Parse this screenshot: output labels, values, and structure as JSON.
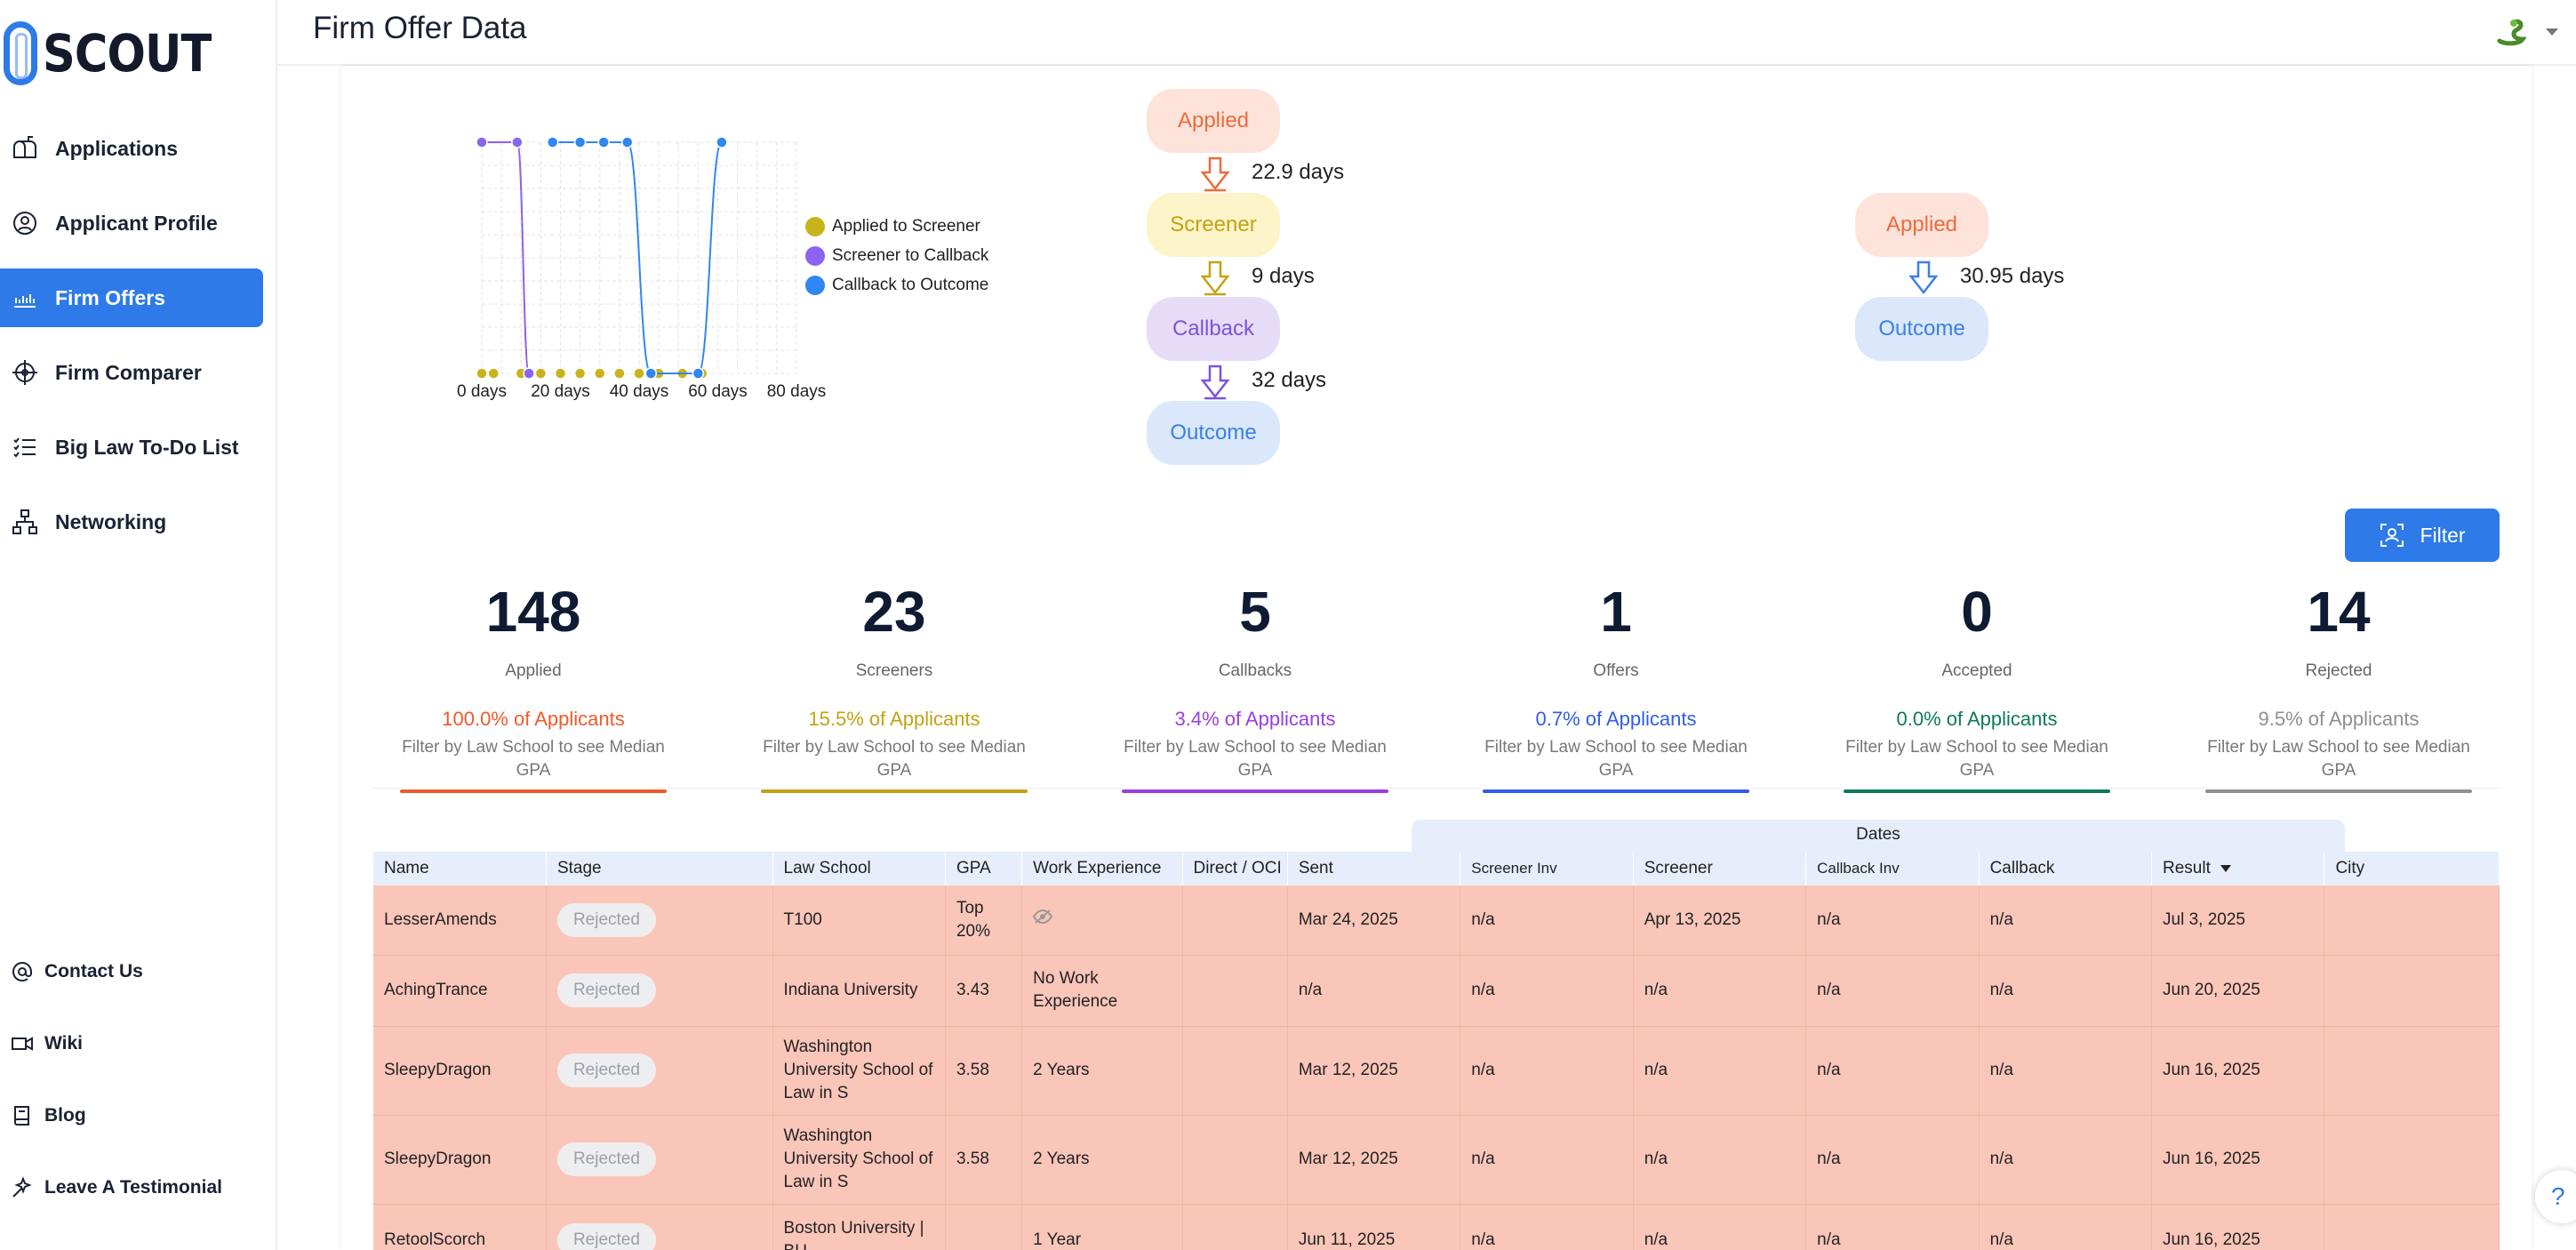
{
  "brand": {
    "name": "SCOUT"
  },
  "header": {
    "title": "Firm Offer Data"
  },
  "sidebar": {
    "items": [
      {
        "label": "Applications",
        "icon": "mailbox-icon"
      },
      {
        "label": "Applicant Profile",
        "icon": "user-search-icon"
      },
      {
        "label": "Firm Offers",
        "icon": "bar-chart-icon",
        "active": true
      },
      {
        "label": "Firm Comparer",
        "icon": "compass-icon"
      },
      {
        "label": "Big Law To-Do List",
        "icon": "checklist-icon"
      },
      {
        "label": "Networking",
        "icon": "network-icon"
      }
    ],
    "footer": [
      {
        "label": "Contact Us",
        "icon": "at-icon"
      },
      {
        "label": "Wiki",
        "icon": "video-icon"
      },
      {
        "label": "Blog",
        "icon": "book-icon"
      },
      {
        "label": "Leave A Testimonial",
        "icon": "sparkle-icon"
      }
    ]
  },
  "chart_data": {
    "type": "scatter",
    "x_ticks": [
      "0 days",
      "20 days",
      "40 days",
      "60 days",
      "80 days"
    ],
    "xlim": [
      0,
      80
    ],
    "grid": true,
    "legend_position": "right",
    "series": [
      {
        "name": "Applied to Screener",
        "color": "#c9b31a",
        "points": [
          [
            0,
            0
          ],
          [
            3,
            0
          ],
          [
            10,
            0
          ],
          [
            15,
            0
          ],
          [
            20,
            0
          ],
          [
            25,
            0
          ],
          [
            30,
            0
          ],
          [
            35,
            0
          ],
          [
            40,
            0
          ],
          [
            45,
            0
          ],
          [
            51,
            0
          ],
          [
            56,
            0
          ]
        ],
        "peaks": []
      },
      {
        "name": "Screener to Callback",
        "color": "#8a63f3",
        "points": [
          [
            0,
            1
          ],
          [
            9,
            1
          ],
          [
            12,
            0
          ]
        ],
        "peaks": []
      },
      {
        "name": "Callback to Outcome",
        "color": "#2f86f5",
        "points": [
          [
            18,
            1
          ],
          [
            25,
            1
          ],
          [
            31,
            1
          ],
          [
            37,
            1
          ],
          [
            43,
            0
          ],
          [
            55,
            0
          ],
          [
            61,
            1
          ]
        ],
        "peaks": []
      }
    ]
  },
  "funnel_left": [
    {
      "label": "Applied",
      "days": "22.9 days",
      "bg": "#fde3da",
      "fg": "#ef6a3d",
      "arrow": "#ef6a3d"
    },
    {
      "label": "Screener",
      "days": "9 days",
      "bg": "#fbf4c9",
      "fg": "#c3a313",
      "arrow": "#c3a313"
    },
    {
      "label": "Callback",
      "days": "32 days",
      "bg": "#e6dcf7",
      "fg": "#7c53dd",
      "arrow": "#7c53dd"
    },
    {
      "label": "Outcome",
      "days": "",
      "bg": "#dbe8fb",
      "fg": "#3b7ee8",
      "arrow": ""
    }
  ],
  "funnel_right": [
    {
      "label": "Applied",
      "days": "30.95 days",
      "bg": "#fde3da",
      "fg": "#ef6a3d",
      "arrow": "#3b7ee8"
    },
    {
      "label": "Outcome",
      "days": "",
      "bg": "#dbe8fb",
      "fg": "#3b7ee8",
      "arrow": ""
    }
  ],
  "filter": {
    "label": "Filter"
  },
  "stats": [
    {
      "num": "148",
      "label": "Applied",
      "pct": "100.0% of Applicants",
      "gpa": "Filter by Law School to see Median GPA",
      "color": "#ef5a2b"
    },
    {
      "num": "23",
      "label": "Screeners",
      "pct": "15.5% of Applicants",
      "gpa": "Filter by Law School to see Median GPA",
      "color": "#c3a313"
    },
    {
      "num": "5",
      "label": "Callbacks",
      "pct": "3.4% of Applicants",
      "gpa": "Filter by Law School to see Median GPA",
      "color": "#9a3ee0"
    },
    {
      "num": "1",
      "label": "Offers",
      "pct": "0.7% of Applicants",
      "gpa": "Filter by Law School to see Median GPA",
      "color": "#2f5ee8"
    },
    {
      "num": "0",
      "label": "Accepted",
      "pct": "0.0% of Applicants",
      "gpa": "Filter by Law School to see Median GPA",
      "color": "#0c7a5a"
    },
    {
      "num": "14",
      "label": "Rejected",
      "pct": "9.5% of Applicants",
      "gpa": "Filter by Law School to see Median GPA",
      "color": "#8f8f8f"
    }
  ],
  "table": {
    "group_header": "Dates",
    "columns": [
      "Name",
      "Stage",
      "Law School",
      "GPA",
      "Work Experience",
      "Direct / OCI",
      "Sent",
      "Screener Inv",
      "Screener",
      "Callback Inv",
      "Callback",
      "Result",
      "City"
    ],
    "rows": [
      {
        "name": "LesserAmends",
        "stage": "Rejected",
        "school": "T100",
        "gpa": "Top 20%",
        "work": "",
        "direct": "",
        "sent": "Mar 24, 2025",
        "sinv": "n/a",
        "screener": "Apr 13, 2025",
        "cinv": "n/a",
        "callback": "n/a",
        "result": "Jul 3, 2025",
        "city": ""
      },
      {
        "name": "AchingTrance",
        "stage": "Rejected",
        "school": "Indiana University",
        "gpa": "3.43",
        "work": "No Work Experience",
        "direct": "",
        "sent": "n/a",
        "sinv": "n/a",
        "screener": "n/a",
        "cinv": "n/a",
        "callback": "n/a",
        "result": "Jun 20, 2025",
        "city": ""
      },
      {
        "name": "SleepyDragon",
        "stage": "Rejected",
        "school": "Washington University School of Law in S",
        "gpa": "3.58",
        "work": "2 Years",
        "direct": "",
        "sent": "Mar 12, 2025",
        "sinv": "n/a",
        "screener": "n/a",
        "cinv": "n/a",
        "callback": "n/a",
        "result": "Jun 16, 2025",
        "city": ""
      },
      {
        "name": "SleepyDragon",
        "stage": "Rejected",
        "school": "Washington University School of Law in S",
        "gpa": "3.58",
        "work": "2 Years",
        "direct": "",
        "sent": "Mar 12, 2025",
        "sinv": "n/a",
        "screener": "n/a",
        "cinv": "n/a",
        "callback": "n/a",
        "result": "Jun 16, 2025",
        "city": ""
      },
      {
        "name": "RetoolScorch",
        "stage": "Rejected",
        "school": "Boston University | BU",
        "gpa": "",
        "work": "1 Year",
        "direct": "",
        "sent": "Jun 11, 2025",
        "sinv": "n/a",
        "screener": "n/a",
        "cinv": "n/a",
        "callback": "n/a",
        "result": "Jun 16, 2025",
        "city": ""
      }
    ]
  },
  "help": {
    "label": "?"
  }
}
